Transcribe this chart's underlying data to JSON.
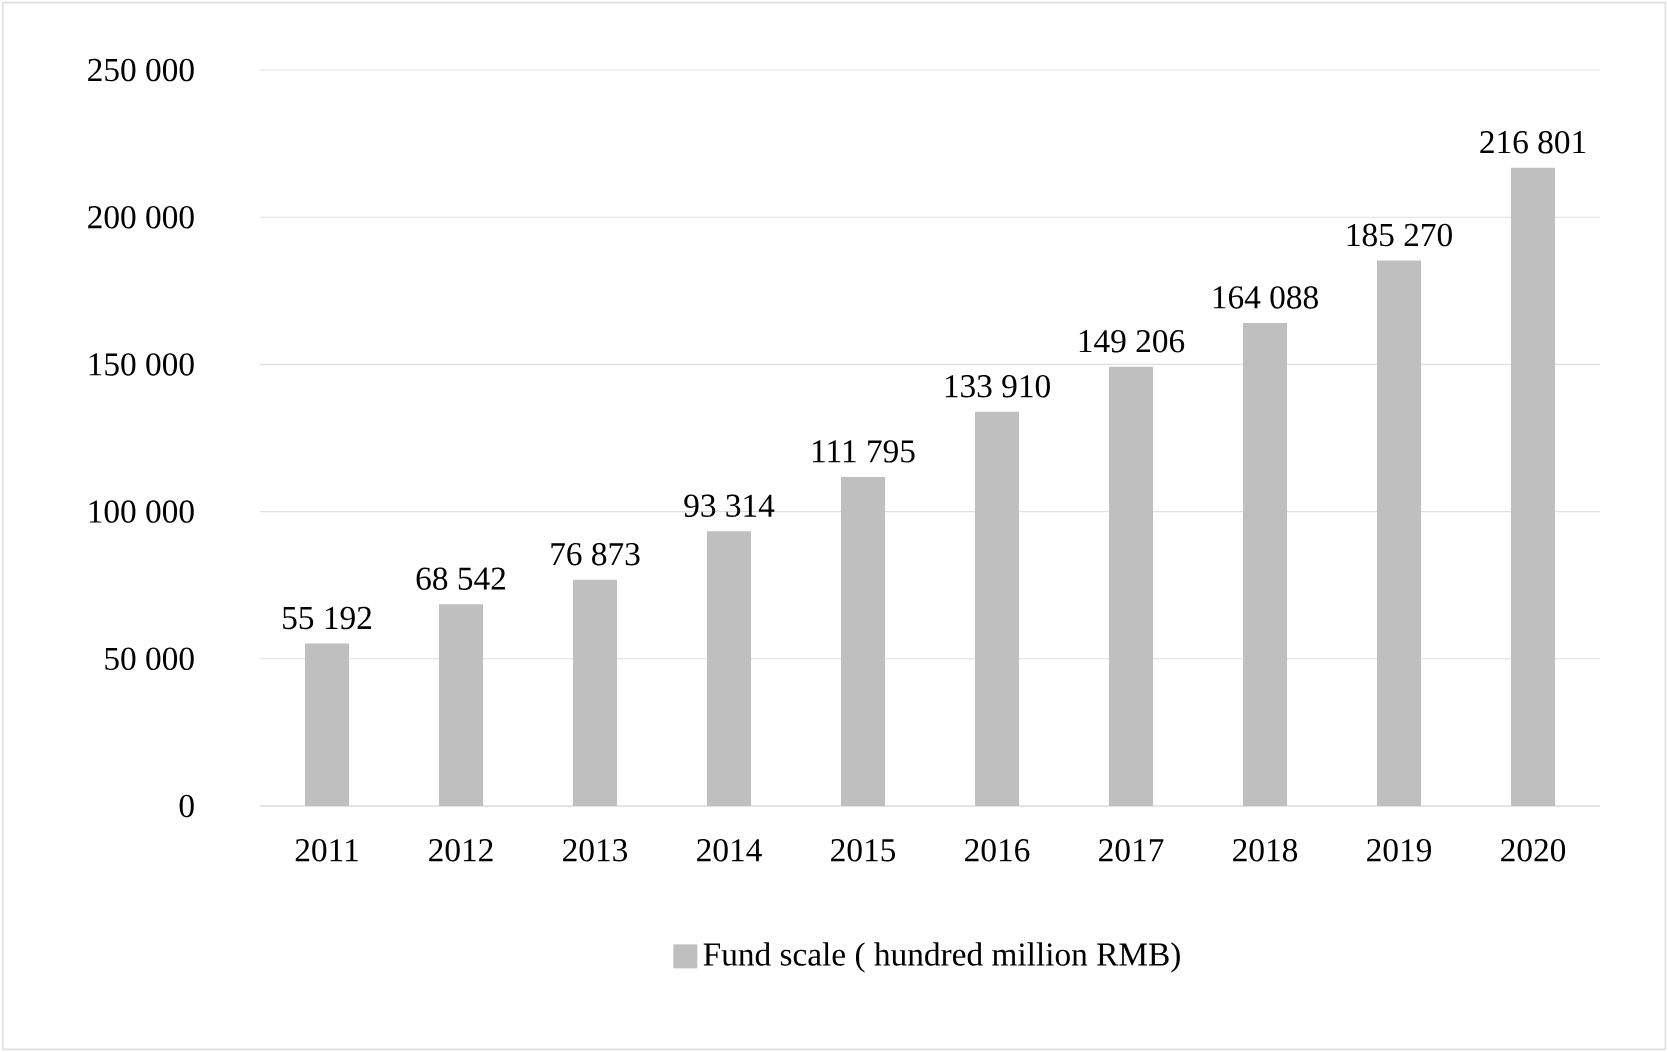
{
  "chart_data": {
    "type": "bar",
    "categories": [
      "2011",
      "2012",
      "2013",
      "2014",
      "2015",
      "2016",
      "2017",
      "2018",
      "2019",
      "2020"
    ],
    "series": [
      {
        "name": "Fund scale ( hundred million RMB)",
        "color": "#bfbfbf",
        "values": [
          55192,
          68542,
          76873,
          93314,
          111795,
          133910,
          149206,
          164088,
          185270,
          216801
        ],
        "value_labels": [
          "55 192",
          "68 542",
          "76 873",
          "93 314",
          "111 795",
          "133 910",
          "149 206",
          "164 088",
          "185 270",
          "216 801"
        ]
      }
    ],
    "ylim": [
      0,
      250000
    ],
    "yticks": [
      {
        "value": 0,
        "label": "0"
      },
      {
        "value": 50000,
        "label": "50 000"
      },
      {
        "value": 100000,
        "label": "100 000"
      },
      {
        "value": 150000,
        "label": "150 000"
      },
      {
        "value": 200000,
        "label": "200 000"
      },
      {
        "value": 250000,
        "label": "250 000"
      }
    ],
    "grid": "y",
    "legend": "bottom"
  }
}
